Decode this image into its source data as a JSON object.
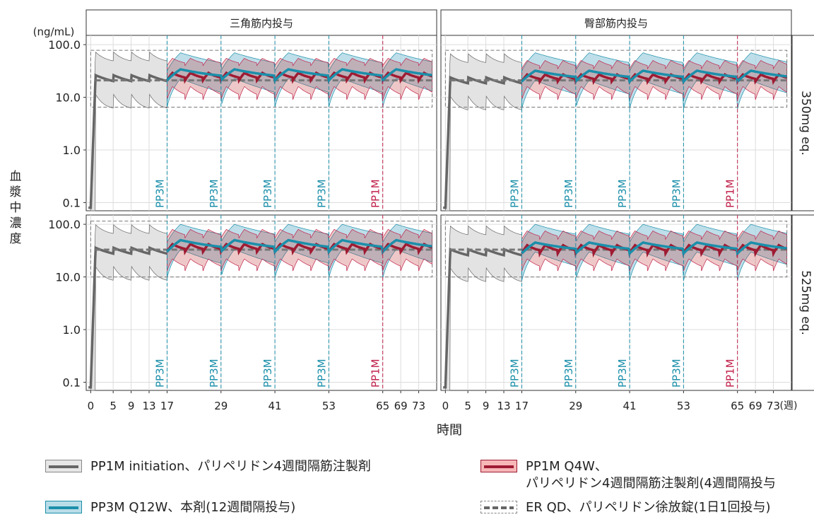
{
  "chart_data": {
    "type": "line",
    "ylabel": "血漿中濃度",
    "xlabel": "時間",
    "yunit": "(ng/mL)",
    "xunit": "(週)",
    "y_scale": "log",
    "ylim": [
      0.07,
      150
    ],
    "xlim": [
      -1,
      77
    ],
    "yticks": [
      "100.0",
      "10.0",
      "1.0",
      "0.1"
    ],
    "ytick_values": [
      100,
      10,
      1,
      0.1
    ],
    "xticks": [
      0,
      5,
      9,
      13,
      17,
      29,
      41,
      53,
      65,
      69,
      73
    ],
    "columns": [
      "三角筋内投与",
      "臀部筋内投与"
    ],
    "rows": [
      "350mg eq.",
      "525mg eq."
    ],
    "colors": {
      "pp1m_init": "#666666",
      "pp3m": "#1b8faa",
      "pp1m_q4w": "#9e1b32",
      "er": "#777777"
    },
    "dose_markers": [
      {
        "week": 17,
        "label": "PP3M",
        "color": "#1b8faa"
      },
      {
        "week": 29,
        "label": "PP3M",
        "color": "#1b8faa"
      },
      {
        "week": 41,
        "label": "PP3M",
        "color": "#1b8faa"
      },
      {
        "week": 53,
        "label": "PP3M",
        "color": "#1b8faa"
      },
      {
        "week": 65,
        "label": "PP1M",
        "color": "#c0204a"
      }
    ],
    "panels": [
      {
        "row": 0,
        "col": 0,
        "init_median": 22,
        "pp3m_median": [
          34,
          21
        ],
        "q4w_median": [
          29,
          21
        ],
        "er_median": 21,
        "er_band": [
          6.5,
          78
        ],
        "pp3m_band_hi": 70,
        "pp3m_band_lo": 6.5,
        "q4w_band_hi": [
          55,
          40
        ],
        "q4w_band_lo": [
          16,
          9
        ],
        "init_band_hi": 70,
        "init_band_lo": 6.5
      },
      {
        "row": 0,
        "col": 1,
        "init_median": 20,
        "pp3m_median": [
          32,
          20
        ],
        "q4w_median": [
          27,
          20
        ],
        "er_median": 21,
        "er_band": [
          6.5,
          78
        ],
        "pp3m_band_hi": 70,
        "pp3m_band_lo": 6,
        "q4w_band_hi": [
          50,
          35
        ],
        "q4w_band_lo": [
          16,
          9
        ],
        "init_band_hi": 65,
        "init_band_lo": 6
      },
      {
        "row": 1,
        "col": 0,
        "init_median": 30,
        "pp3m_median": [
          50,
          30
        ],
        "q4w_median": [
          42,
          30
        ],
        "er_median": 33,
        "er_band": [
          10,
          115
        ],
        "pp3m_band_hi": 100,
        "pp3m_band_lo": 9.5,
        "q4w_band_hi": [
          80,
          55
        ],
        "q4w_band_lo": [
          22,
          13
        ],
        "init_band_hi": 95,
        "init_band_lo": 9
      },
      {
        "row": 1,
        "col": 1,
        "init_median": 28,
        "pp3m_median": [
          45,
          28
        ],
        "q4w_median": [
          40,
          28
        ],
        "er_median": 33,
        "er_band": [
          10,
          115
        ],
        "pp3m_band_hi": 100,
        "pp3m_band_lo": 8.5,
        "q4w_band_hi": [
          75,
          52
        ],
        "q4w_band_lo": [
          22,
          13
        ],
        "init_band_hi": 90,
        "init_band_lo": 8.5
      }
    ]
  },
  "legend": {
    "pp1m_init": "PP1M initiation、パリペリドン4週間隔筋注製剤",
    "pp3m": "PP3M Q12W、本剤(12週間隔投与)",
    "pp1m_q4w_line1": "PP1M Q4W、",
    "pp1m_q4w_line2": "パリペリドン4週間隔筋注製剤(4週間隔投与",
    "er": "ER QD、パリペリドン徐放錠(1日1回投与)"
  }
}
